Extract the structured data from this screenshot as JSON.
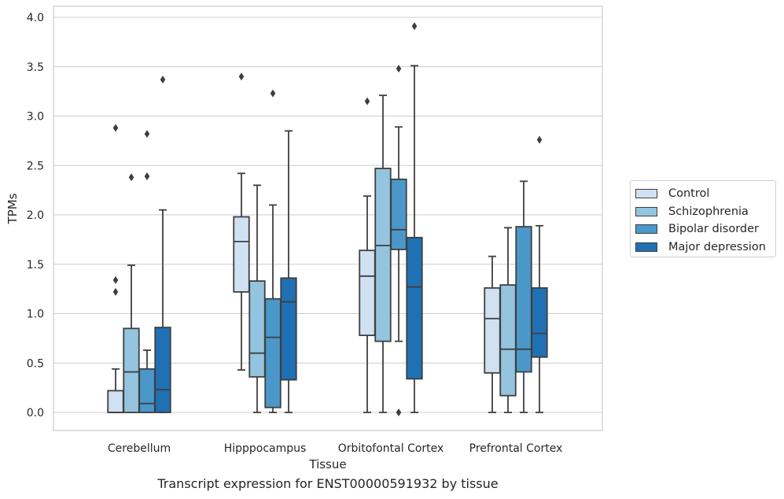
{
  "chart_data": {
    "type": "box",
    "caption": "Transcript expression for ENST00000591932 by tissue",
    "xlabel": "Tissue",
    "ylabel": "TPMs",
    "ylim": [
      -0.19,
      4.1
    ],
    "yticks": [
      "0.0",
      "0.5",
      "1.0",
      "1.5",
      "2.0",
      "2.5",
      "3.0",
      "3.5",
      "4.0"
    ],
    "categories": [
      "Cerebellum",
      "Hipppocampus",
      "Orbitofontal Cortex",
      "Prefrontal Cortex"
    ],
    "grid": true,
    "legend_position": "right",
    "series": [
      {
        "name": "Control",
        "color": "#d0e1f2",
        "boxes": [
          {
            "whislo": 0.0,
            "q1": 0.0,
            "med": 0.0,
            "q3": 0.22,
            "whishi": 0.44,
            "fliers": [
              1.22,
              1.34,
              2.88
            ]
          },
          {
            "whislo": 0.43,
            "q1": 1.22,
            "med": 1.73,
            "q3": 1.98,
            "whishi": 2.42,
            "fliers": [
              3.4
            ]
          },
          {
            "whislo": 0.0,
            "q1": 0.78,
            "med": 1.38,
            "q3": 1.64,
            "whishi": 2.19,
            "fliers": [
              3.15
            ]
          },
          {
            "whislo": 0.0,
            "q1": 0.4,
            "med": 0.95,
            "q3": 1.26,
            "whishi": 1.58,
            "fliers": []
          }
        ]
      },
      {
        "name": "Schizophrenia",
        "color": "#94c4df",
        "boxes": [
          {
            "whislo": 0.0,
            "q1": 0.0,
            "med": 0.41,
            "q3": 0.85,
            "whishi": 1.49,
            "fliers": [
              2.38
            ]
          },
          {
            "whislo": 0.0,
            "q1": 0.36,
            "med": 0.6,
            "q3": 1.33,
            "whishi": 2.3,
            "fliers": []
          },
          {
            "whislo": 0.0,
            "q1": 0.72,
            "med": 1.69,
            "q3": 2.47,
            "whishi": 3.21,
            "fliers": []
          },
          {
            "whislo": 0.0,
            "q1": 0.17,
            "med": 0.64,
            "q3": 1.29,
            "whishi": 1.87,
            "fliers": []
          }
        ]
      },
      {
        "name": "Bipolar disorder",
        "color": "#4a98c9",
        "boxes": [
          {
            "whislo": 0.0,
            "q1": 0.0,
            "med": 0.09,
            "q3": 0.44,
            "whishi": 0.63,
            "fliers": [
              2.39,
              2.82
            ]
          },
          {
            "whislo": 0.0,
            "q1": 0.05,
            "med": 0.76,
            "q3": 1.15,
            "whishi": 2.1,
            "fliers": [
              3.23
            ]
          },
          {
            "whislo": 0.72,
            "q1": 1.65,
            "med": 1.85,
            "q3": 2.36,
            "whishi": 2.89,
            "fliers": [
              0.0,
              3.48
            ]
          },
          {
            "whislo": 0.0,
            "q1": 0.41,
            "med": 0.64,
            "q3": 1.88,
            "whishi": 2.34,
            "fliers": []
          }
        ]
      },
      {
        "name": "Major depression",
        "color": "#2070b4",
        "boxes": [
          {
            "whislo": 0.0,
            "q1": 0.0,
            "med": 0.23,
            "q3": 0.86,
            "whishi": 2.05,
            "fliers": [
              3.37
            ]
          },
          {
            "whislo": 0.0,
            "q1": 0.33,
            "med": 1.12,
            "q3": 1.36,
            "whishi": 2.85,
            "fliers": []
          },
          {
            "whislo": 0.0,
            "q1": 0.34,
            "med": 1.27,
            "q3": 1.77,
            "whishi": 3.51,
            "fliers": [
              3.91
            ]
          },
          {
            "whislo": 0.0,
            "q1": 0.56,
            "med": 0.8,
            "q3": 1.26,
            "whishi": 1.89,
            "fliers": [
              2.76
            ]
          }
        ]
      }
    ]
  }
}
